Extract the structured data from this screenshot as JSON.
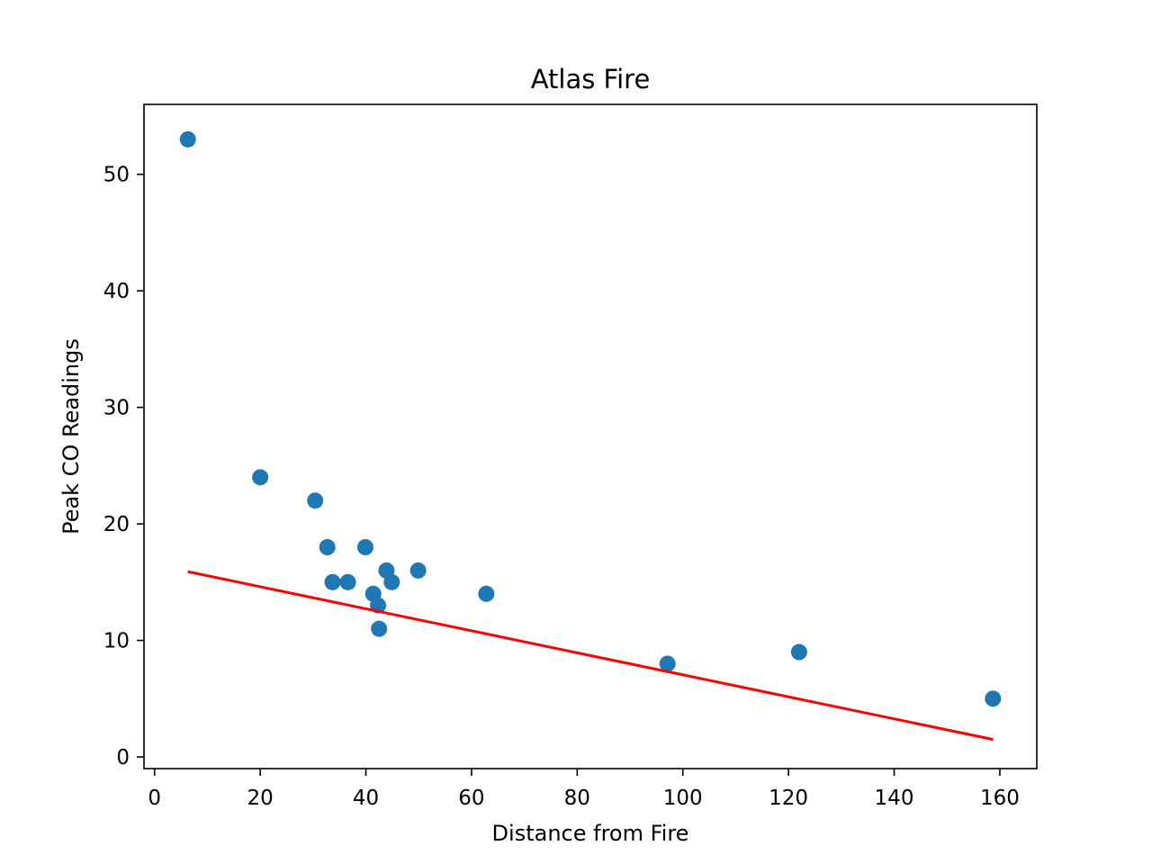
{
  "chart_data": {
    "type": "scatter",
    "title": "Atlas Fire",
    "xlabel": "Distance from Fire",
    "ylabel": "Peak CO Readings",
    "xlim": [
      -2.0,
      167.0
    ],
    "ylim": [
      -1.0,
      56.0
    ],
    "xticks": [
      0,
      20,
      40,
      60,
      80,
      100,
      120,
      140,
      160
    ],
    "yticks": [
      0,
      10,
      20,
      30,
      40,
      50
    ],
    "grid": false,
    "point_color": "#1f77b4",
    "line_color": "#ff0000",
    "points": [
      {
        "x": 6.3,
        "y": 53
      },
      {
        "x": 20.0,
        "y": 24
      },
      {
        "x": 30.4,
        "y": 22
      },
      {
        "x": 32.7,
        "y": 18
      },
      {
        "x": 33.7,
        "y": 15
      },
      {
        "x": 36.6,
        "y": 15
      },
      {
        "x": 39.9,
        "y": 18
      },
      {
        "x": 41.4,
        "y": 14
      },
      {
        "x": 42.3,
        "y": 13
      },
      {
        "x": 42.5,
        "y": 11
      },
      {
        "x": 43.9,
        "y": 16
      },
      {
        "x": 44.9,
        "y": 15
      },
      {
        "x": 49.9,
        "y": 16
      },
      {
        "x": 62.8,
        "y": 14
      },
      {
        "x": 97.1,
        "y": 8
      },
      {
        "x": 122.0,
        "y": 9
      },
      {
        "x": 158.7,
        "y": 5
      }
    ],
    "fit_line": [
      {
        "x": 6.3,
        "y": 15.9
      },
      {
        "x": 158.7,
        "y": 1.5
      }
    ]
  }
}
